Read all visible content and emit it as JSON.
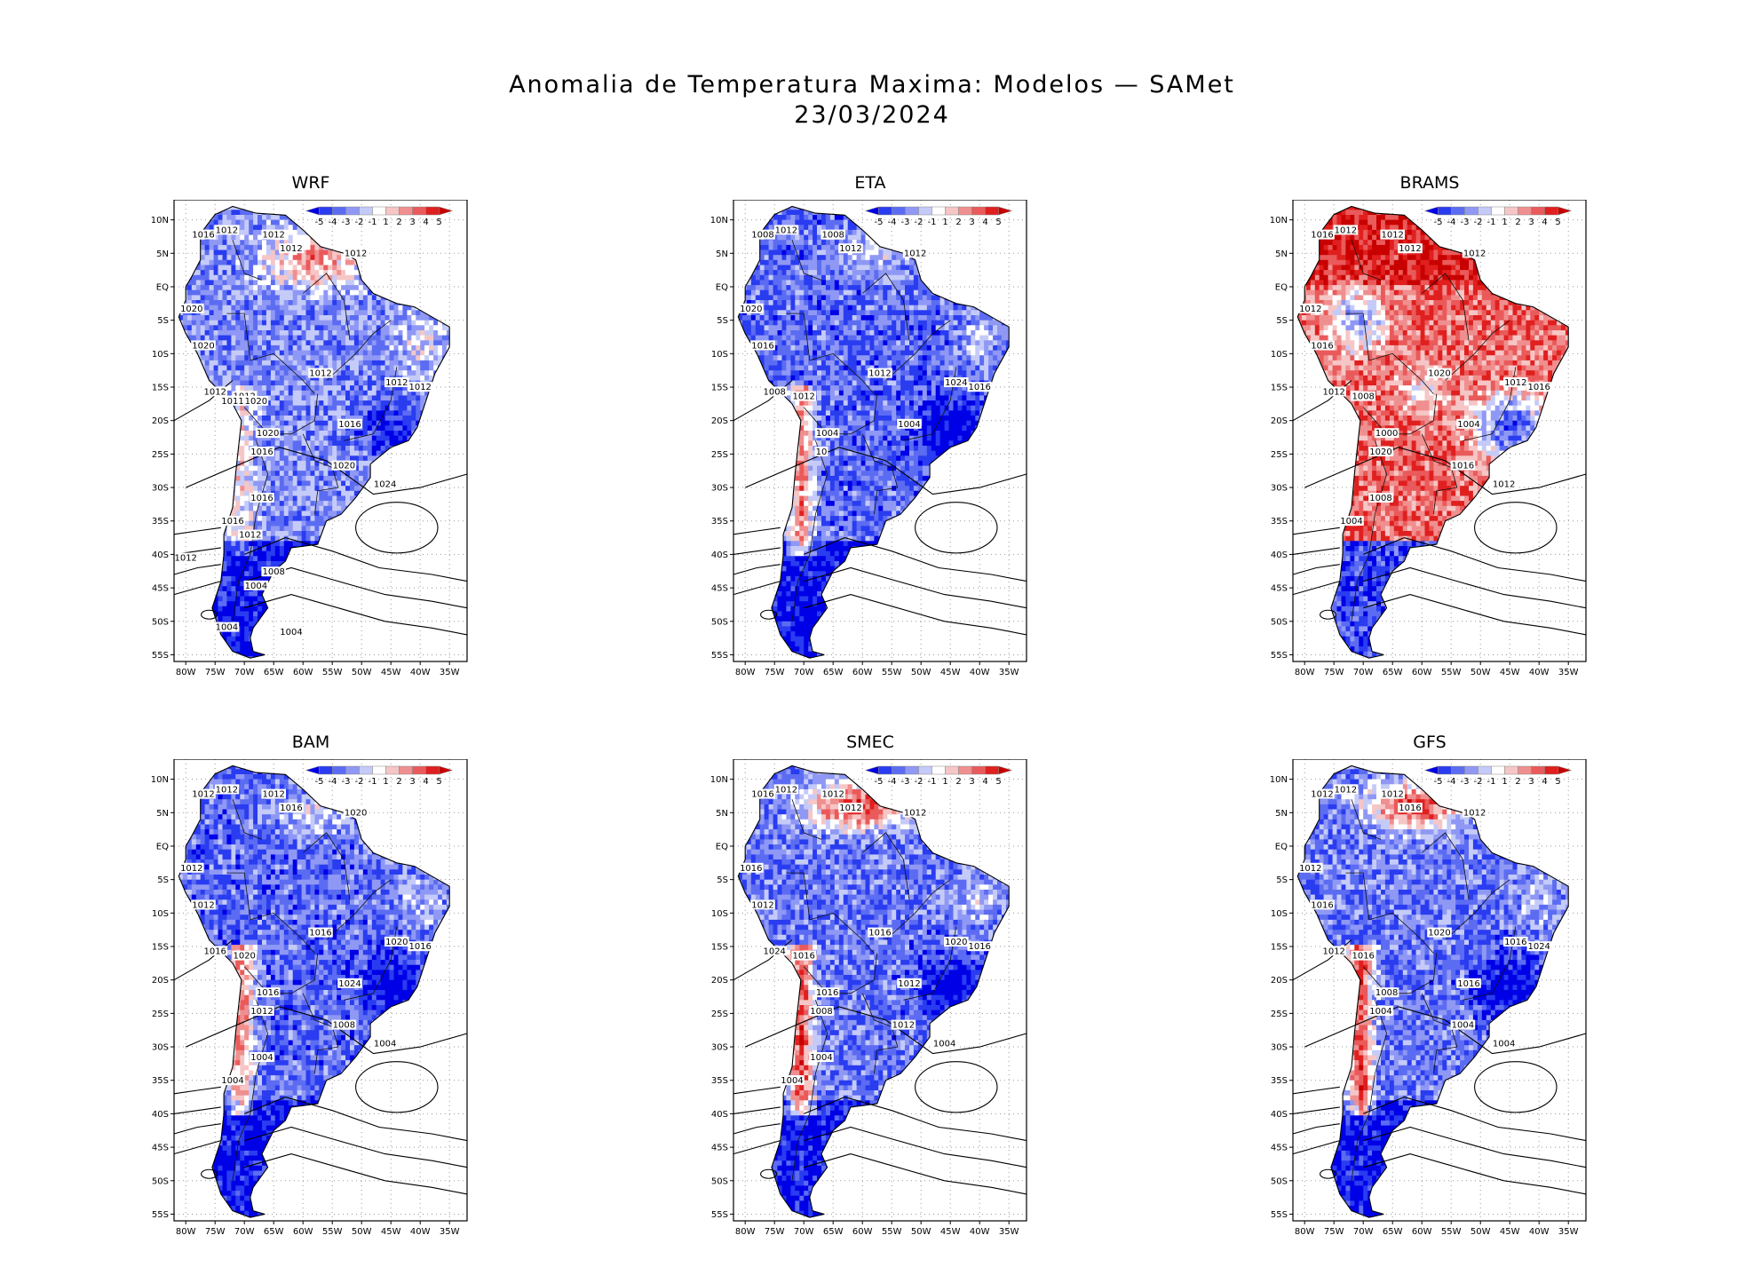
{
  "title": {
    "line1": "Anomalia de Temperatura Maxima: Modelos — SAMet",
    "line2": "23/03/2024"
  },
  "colorbar": {
    "labels": [
      "-5",
      "-4",
      "-3",
      "-2",
      "-1",
      "1",
      "2",
      "3",
      "4",
      "5"
    ],
    "colors": [
      "#0000e6",
      "#2a3cf0",
      "#5c6cf2",
      "#8f98f4",
      "#c5cbf8",
      "#ffffff",
      "#f6c6c6",
      "#f08f8f",
      "#ea5a5a",
      "#e01f1f",
      "#c80000"
    ]
  },
  "axes": {
    "lat_labels": [
      "10N",
      "5N",
      "EQ",
      "5S",
      "10S",
      "15S",
      "20S",
      "25S",
      "30S",
      "35S",
      "40S",
      "45S",
      "50S",
      "55S"
    ],
    "lon_labels": [
      "80W",
      "75W",
      "70W",
      "65W",
      "60W",
      "55W",
      "50W",
      "45W",
      "40W",
      "35W"
    ]
  },
  "panels": [
    {
      "name": "WRF",
      "tone": "mixed-cold",
      "isobars": [
        "1012",
        "1016",
        "1012",
        "1012",
        "1012",
        "1020",
        "1020",
        "1012",
        "1012",
        "1012",
        "1012",
        "1012",
        "1016",
        "1020",
        "1016",
        "1020",
        "1024",
        "1016",
        "1016",
        "1012",
        "1012",
        "1008",
        "1004",
        "1004",
        "1004",
        "1011",
        "1020"
      ]
    },
    {
      "name": "ETA",
      "tone": "cold",
      "isobars": [
        "1012",
        "1008",
        "1008",
        "1012",
        "1012",
        "1020",
        "1016",
        "1012",
        "1024",
        "1016",
        "1008",
        "1012",
        "1004",
        "1004",
        "10"
      ]
    },
    {
      "name": "BRAMS",
      "tone": "warm",
      "isobars": [
        "1012",
        "1016",
        "1012",
        "1012",
        "1012",
        "1012",
        "1016",
        "1020",
        "1012",
        "1016",
        "1012",
        "1008",
        "1004",
        "1000",
        "1020",
        "1016",
        "1012",
        "1008",
        "1004"
      ]
    },
    {
      "name": "BAM",
      "tone": "cold",
      "isobars": [
        "1012",
        "1012",
        "1012",
        "1016",
        "1020",
        "1012",
        "1012",
        "1016",
        "1020",
        "1016",
        "1016",
        "1020",
        "1024",
        "1016",
        "1012",
        "1008",
        "1004",
        "1004",
        "1004"
      ]
    },
    {
      "name": "SMEC",
      "tone": "cold-warmnorth",
      "isobars": [
        "1012",
        "1016",
        "1012",
        "1012",
        "1012",
        "1016",
        "1012",
        "1016",
        "1020",
        "1016",
        "1024",
        "1016",
        "1012",
        "1016",
        "1008",
        "1012",
        "1004",
        "1004",
        "1004"
      ]
    },
    {
      "name": "GFS",
      "tone": "cold-warmnorth",
      "isobars": [
        "1012",
        "1012",
        "1012",
        "1016",
        "1012",
        "1012",
        "1016",
        "1020",
        "1016",
        "1024",
        "1012",
        "1016",
        "1016",
        "1008",
        "1004",
        "1004",
        "1004"
      ]
    }
  ]
}
